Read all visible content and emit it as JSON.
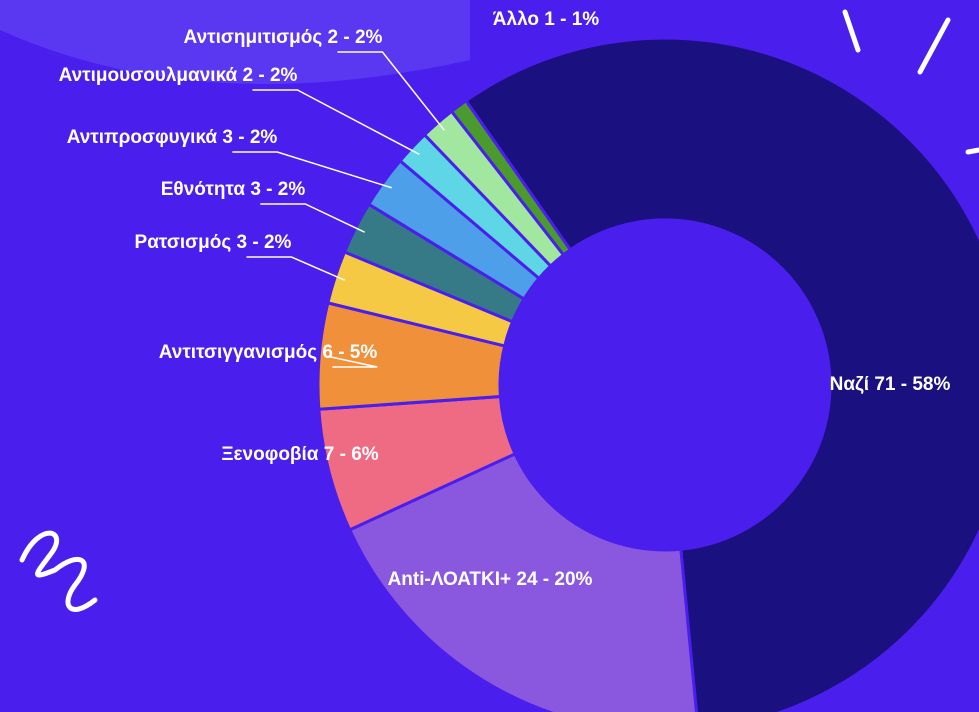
{
  "chart_data": {
    "type": "donut",
    "labels": [
      "Ναζί 71 - 58%",
      "Anti-ΛΟΑΤΚΙ+ 24 - 20%",
      "Ξενοφοβία 7 - 6%",
      "Αντιτσιγγανισμός 6 - 5%",
      "Ρατσισμός 3 - 2%",
      "Εθνότητα 3 - 2%",
      "Αντιπροσφυγικά 3 - 2%",
      "Αντιμουσουλμανικά 2 - 2%",
      "Αντισημιτισμός 2 - 2%",
      "Άλλο 1 - 1%"
    ],
    "values": [
      71,
      24,
      7,
      6,
      3,
      3,
      3,
      2,
      2,
      1
    ],
    "colors": [
      "#1a1080",
      "#8a58df",
      "#ee6b83",
      "#f0903a",
      "#f6c944",
      "#357a86",
      "#4c9fe8",
      "#5fd6e6",
      "#a2e7a0",
      "#4a9a2e"
    ]
  }
}
